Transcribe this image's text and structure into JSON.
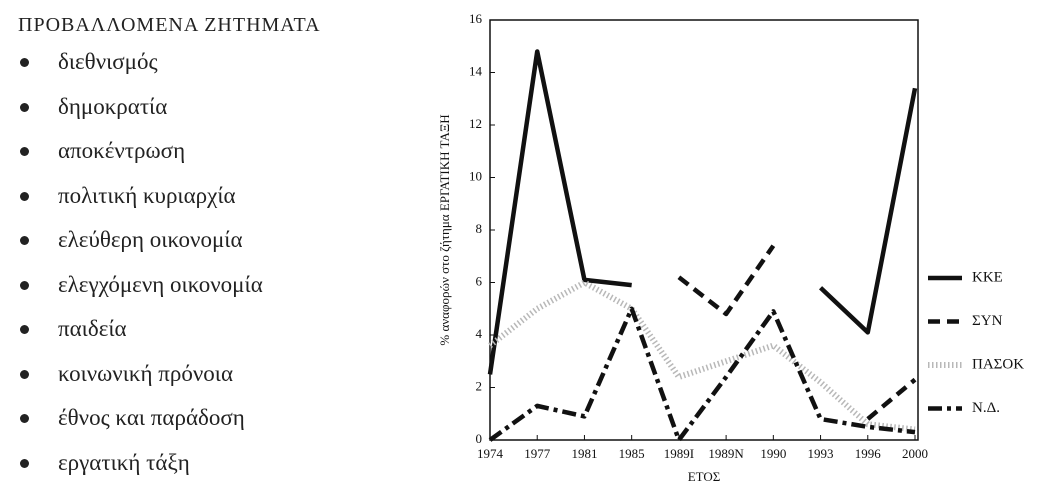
{
  "list": {
    "title": "ΠΡΟΒΑΛΛΟΜΕΝΑ ΖΗΤΗΜΑΤΑ",
    "items": [
      "διεθνισμός",
      "δημοκρατία",
      "αποκέντρωση",
      "πολιτική κυριαρχία",
      "ελεύθερη οικονομία",
      "ελεγχόμενη οικονομία",
      "παιδεία",
      "κοινωνική πρόνοια",
      "έθνος και παράδοση",
      "εργατική τάξη"
    ]
  },
  "chart_data": {
    "type": "line",
    "ylabel": "% αναφορών στο ζήτημα ΕΡΓΑΤΙΚΗ ΤΑΞΗ",
    "xlabel": "ΕΤΟΣ",
    "categories": [
      "1974",
      "1977",
      "1981",
      "1985",
      "1989I",
      "1989N",
      "1990",
      "1993",
      "1996",
      "2000"
    ],
    "series": [
      {
        "name": "ΚΚΕ",
        "color": "#111111",
        "linestyle": "solid",
        "values": [
          2.5,
          14.8,
          6.1,
          5.9,
          null,
          null,
          null,
          5.8,
          4.1,
          13.4
        ]
      },
      {
        "name": "ΣΥΝ",
        "color": "#111111",
        "linestyle": "dashed",
        "values": [
          null,
          null,
          null,
          null,
          6.2,
          4.8,
          7.4,
          null,
          0.8,
          2.3
        ]
      },
      {
        "name": "ΠΑΣΟΚ",
        "color": "#b8b8b8",
        "linestyle": "dotted",
        "values": [
          3.6,
          5.0,
          6.0,
          5.0,
          2.4,
          3.0,
          3.6,
          2.2,
          0.6,
          0.4
        ]
      },
      {
        "name": "Ν.Δ.",
        "color": "#111111",
        "linestyle": "dashdot",
        "values": [
          0,
          1.3,
          0.9,
          5.0,
          0,
          2.4,
          4.9,
          0.8,
          0.5,
          0.3
        ]
      }
    ],
    "ylim": [
      0,
      16
    ],
    "yticks": [
      0,
      2,
      4,
      6,
      8,
      10,
      12,
      14,
      16
    ],
    "legend": "right"
  }
}
